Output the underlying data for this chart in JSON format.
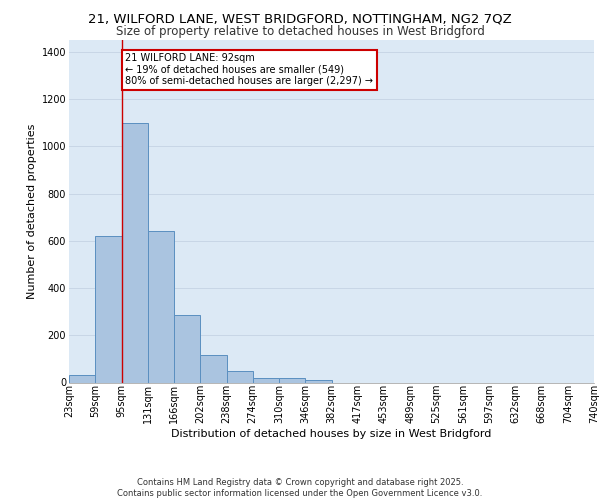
{
  "title_line1": "21, WILFORD LANE, WEST BRIDGFORD, NOTTINGHAM, NG2 7QZ",
  "title_line2": "Size of property relative to detached houses in West Bridgford",
  "xlabel": "Distribution of detached houses by size in West Bridgford",
  "ylabel": "Number of detached properties",
  "bins": [
    "23sqm",
    "59sqm",
    "95sqm",
    "131sqm",
    "166sqm",
    "202sqm",
    "238sqm",
    "274sqm",
    "310sqm",
    "346sqm",
    "382sqm",
    "417sqm",
    "453sqm",
    "489sqm",
    "525sqm",
    "561sqm",
    "597sqm",
    "632sqm",
    "668sqm",
    "704sqm",
    "740sqm"
  ],
  "bar_values": [
    30,
    620,
    1100,
    640,
    285,
    115,
    48,
    20,
    20,
    10,
    0,
    0,
    0,
    0,
    0,
    0,
    0,
    0,
    0,
    0
  ],
  "bar_color": "#aac4e0",
  "bar_edge_color": "#5a8fc0",
  "ylim": [
    0,
    1450
  ],
  "yticks": [
    0,
    200,
    400,
    600,
    800,
    1000,
    1200,
    1400
  ],
  "property_size": 92,
  "vline_x": 2,
  "annotation_text": "21 WILFORD LANE: 92sqm\n← 19% of detached houses are smaller (549)\n80% of semi-detached houses are larger (2,297) →",
  "annotation_box_color": "#ffffff",
  "annotation_box_edge_color": "#cc0000",
  "vline_color": "#cc0000",
  "background_color": "#dce9f5",
  "footer_text": "Contains HM Land Registry data © Crown copyright and database right 2025.\nContains public sector information licensed under the Open Government Licence v3.0.",
  "title_fontsize": 9.5,
  "subtitle_fontsize": 8.5,
  "axis_label_fontsize": 8,
  "tick_fontsize": 7,
  "footer_fontsize": 6
}
